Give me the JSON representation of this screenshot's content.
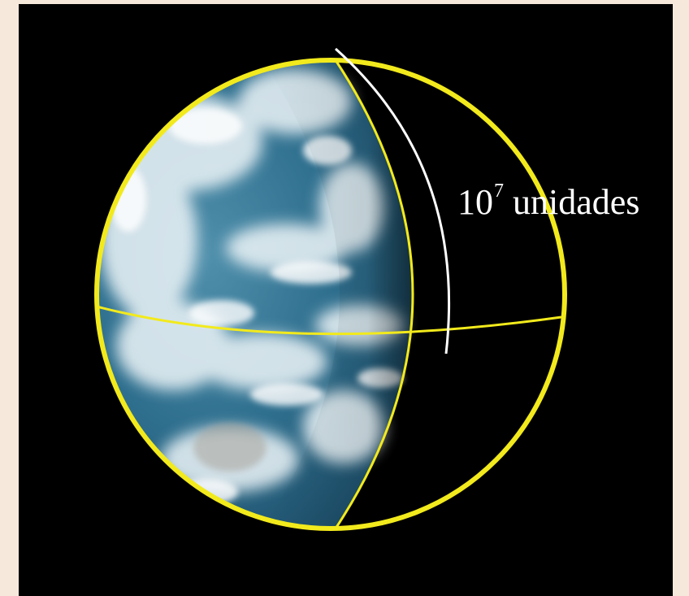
{
  "label": {
    "base": "10",
    "exponent": "7",
    "unit": "unidades"
  },
  "colors": {
    "background_border": "#f6e9dc",
    "space": "#000000",
    "meridian_lines": "#f2ea1c",
    "arc_marker": "#ffffff",
    "ocean": "#2f6f8e",
    "clouds": "#eef5f8"
  }
}
